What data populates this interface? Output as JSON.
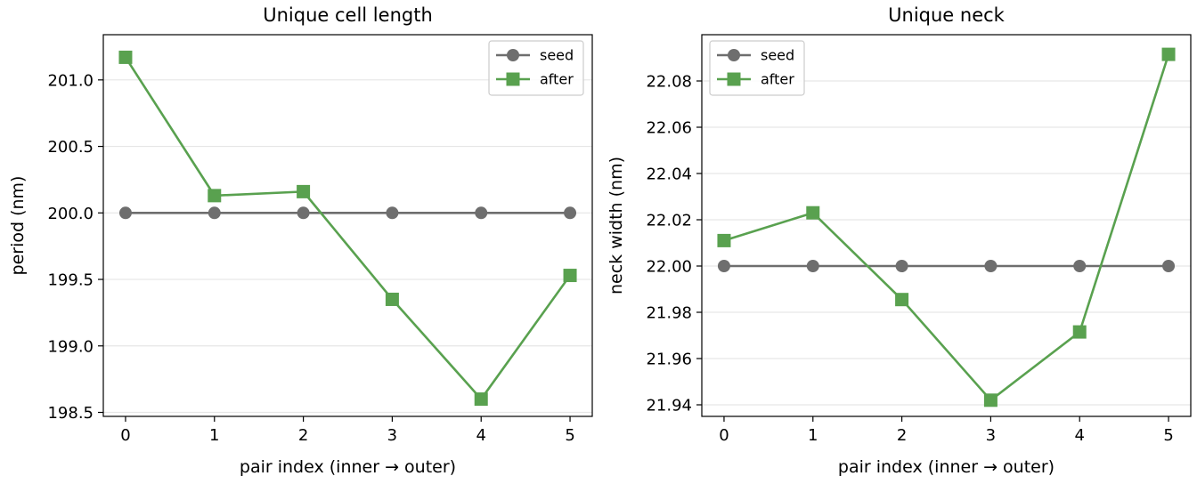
{
  "chart_data": [
    {
      "type": "line",
      "title": "Unique cell length",
      "xlabel": "pair index (inner → outer)",
      "ylabel": "period (nm)",
      "x": [
        0,
        1,
        2,
        3,
        4,
        5
      ],
      "xticks": [
        "0",
        "1",
        "2",
        "3",
        "4",
        "5"
      ],
      "xlim": [
        -0.25,
        5.25
      ],
      "ylim": [
        198.47,
        201.34
      ],
      "yticks": [
        "198.5",
        "199.0",
        "199.5",
        "200.0",
        "200.5",
        "201.0"
      ],
      "grid": "horizontal",
      "legend": "top-right",
      "series": [
        {
          "name": "seed",
          "marker": "circle",
          "color": "#6e6e6e",
          "values": [
            200.0,
            200.0,
            200.0,
            200.0,
            200.0,
            200.0
          ]
        },
        {
          "name": "after",
          "marker": "square",
          "color": "#59a14f",
          "values": [
            201.17,
            200.13,
            200.16,
            199.35,
            198.6,
            199.53
          ]
        }
      ]
    },
    {
      "type": "line",
      "title": "Unique neck",
      "xlabel": "pair index (inner → outer)",
      "ylabel": "neck width (nm)",
      "x": [
        0,
        1,
        2,
        3,
        4,
        5
      ],
      "xticks": [
        "0",
        "1",
        "2",
        "3",
        "4",
        "5"
      ],
      "xlim": [
        -0.25,
        5.25
      ],
      "ylim": [
        21.935,
        22.1
      ],
      "yticks": [
        "21.94",
        "21.96",
        "21.98",
        "22.00",
        "22.02",
        "22.04",
        "22.06",
        "22.08"
      ],
      "grid": "horizontal",
      "legend": "top-left",
      "series": [
        {
          "name": "seed",
          "marker": "circle",
          "color": "#6e6e6e",
          "values": [
            22.0,
            22.0,
            22.0,
            22.0,
            22.0,
            22.0
          ]
        },
        {
          "name": "after",
          "marker": "square",
          "color": "#59a14f",
          "values": [
            22.011,
            22.023,
            21.9855,
            21.942,
            21.9715,
            22.0915
          ]
        }
      ]
    }
  ]
}
